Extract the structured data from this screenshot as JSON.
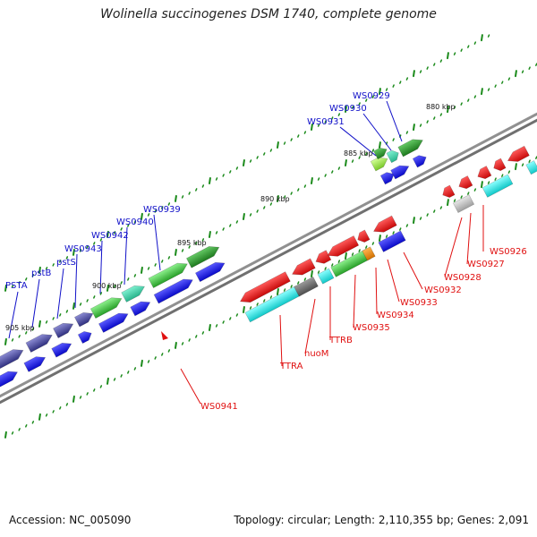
{
  "title": "Wolinella succinogenes DSM 1740, complete genome",
  "footer": {
    "accession": "Accession: NC_005090",
    "stats": "Topology: circular; Length: 2,110,355 bp; Genes: 2,091"
  },
  "kbp_labels": {
    "k880": "880 kbp",
    "k885": "885 kbp",
    "k890": "890 kbp",
    "k895": "895 kbp",
    "k900": "900 kbp",
    "k905": "905 kbp"
  },
  "gene_labels_forward": {
    "WS0929": "WS0929",
    "WS0930": "WS0930",
    "WS0931": "WS0931",
    "WS0939": "WS0939",
    "WS0940": "WS0940",
    "WS0942": "WS0942",
    "WS0943": "WS0943",
    "pstS": "pstS",
    "pstB": "pstB",
    "PSTA": "PSTA"
  },
  "gene_labels_reverse": {
    "WS0926": "WS0926",
    "WS0927": "WS0927",
    "WS0928": "WS0928",
    "WS0932": "WS0932",
    "WS0933": "WS0933",
    "WS0934": "WS0934",
    "WS0935": "WS0935",
    "TTRB": "TTRB",
    "nuoM": "nuoM",
    "TTRA": "TTRA",
    "WS0941": "WS0941"
  },
  "colors": {
    "forward_label": "#1010c8",
    "reverse_label": "#e01010",
    "backbone": "#808080",
    "tick": "#1a8a1a",
    "blue_cds": "#1414f0",
    "red_cds": "#f01818",
    "green_cds": "#3cc83c",
    "dark_green_cds": "#2a962a",
    "cyan_cds": "#18e6e6",
    "purple_cds": "#4a4aa0",
    "gray_cds": "#6e6e6e",
    "orange_cds": "#f08c14",
    "lime_cds": "#a0f050",
    "light_gray_cds": "#c8c8c8"
  }
}
